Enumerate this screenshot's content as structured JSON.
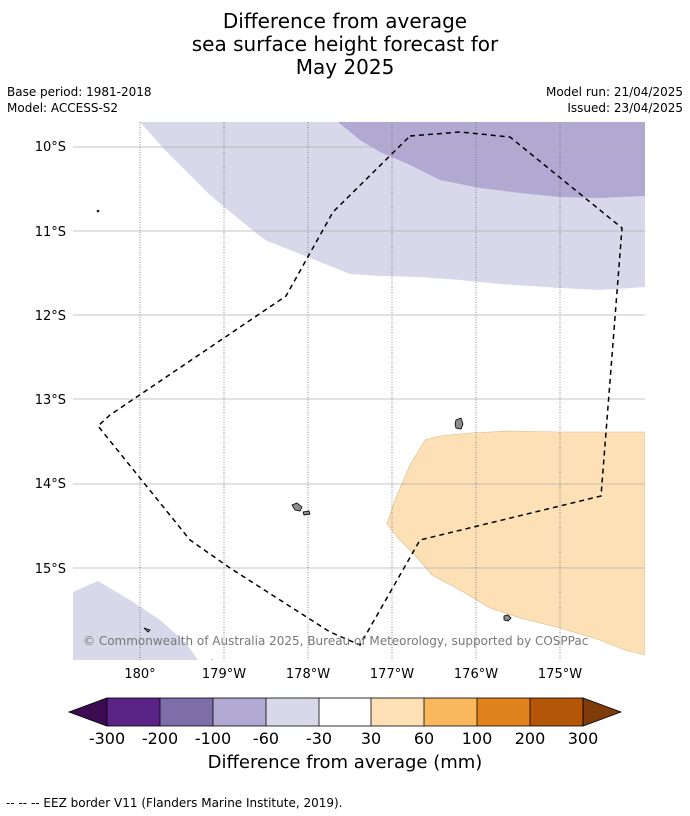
{
  "title": {
    "line1": "Difference from average",
    "line2": "sea surface height forecast for",
    "line3": "May 2025"
  },
  "meta": {
    "base_period": "Base period: 1981-2018",
    "model": "Model: ACCESS-S2",
    "model_run": "Model run: 21/04/2025",
    "issued": "Issued: 23/04/2025"
  },
  "map": {
    "lat_labels": [
      "10°S",
      "11°S",
      "12°S",
      "13°S",
      "14°S",
      "15°S"
    ],
    "lon_labels": [
      "180°",
      "179°W",
      "178°W",
      "177°W",
      "176°W",
      "175°W"
    ],
    "copyright": "© Commonwealth of Australia 2025, Bureau of Meteorology, supported by COSPPac",
    "colors": {
      "neg_200_100": "#b1a9d2",
      "neg_60_30": "#d8d8ea",
      "pos_30_60": "#fde0b6",
      "eez_line": "#000000"
    }
  },
  "colorbar": {
    "title": "Difference from average (mm)",
    "ticks": [
      "-300",
      "-200",
      "-100",
      "-60",
      "-30",
      "30",
      "60",
      "100",
      "200",
      "300"
    ],
    "colors": [
      "#3c0b51",
      "#5a2386",
      "#7d6ea9",
      "#b1a9d2",
      "#d8d8ea",
      "#ffffff",
      "#fde0b6",
      "#f9b75e",
      "#e0821c",
      "#b45608",
      "#7f3c0a"
    ]
  },
  "footnote": "--  --  -- EEZ border V11 (Flanders Marine Institute, 2019)."
}
